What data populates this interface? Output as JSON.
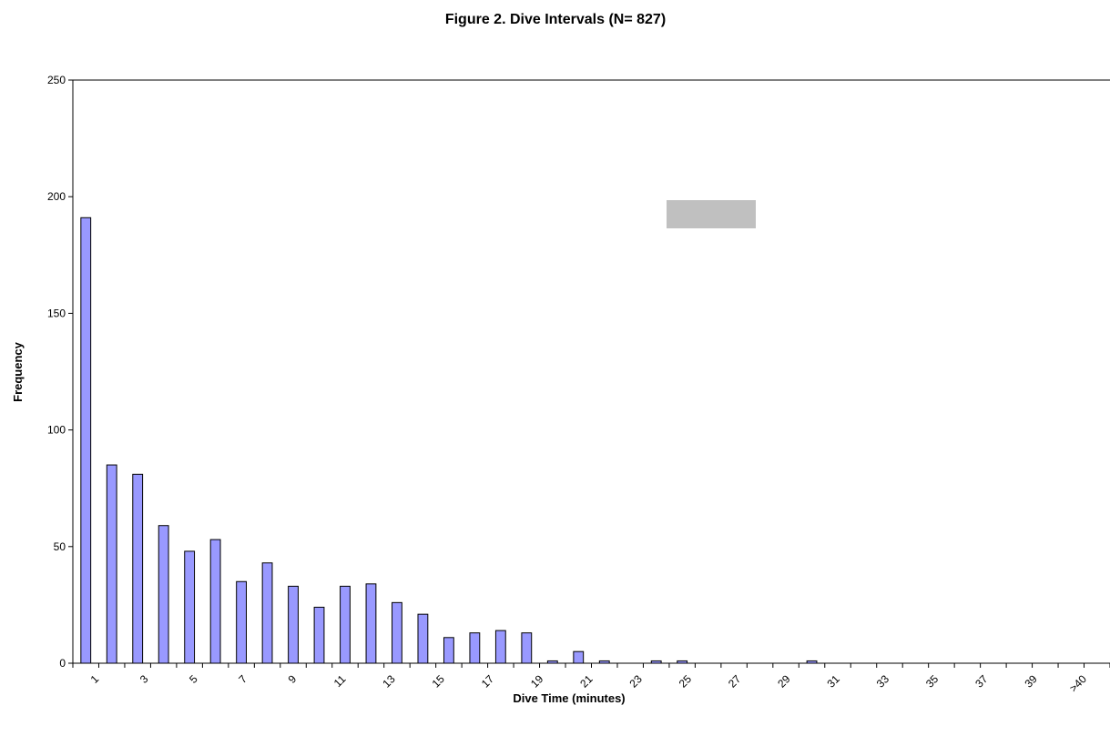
{
  "chart_data": {
    "type": "bar",
    "title": "Figure 2. Dive Intervals (N= 827)",
    "xlabel": "Dive Time (minutes)",
    "ylabel": "Frequency",
    "ylim": [
      0,
      250
    ],
    "yticks": [
      0,
      50,
      100,
      150,
      200,
      250
    ],
    "grid": false,
    "categories": [
      "1",
      "2",
      "3",
      "4",
      "5",
      "6",
      "7",
      "8",
      "9",
      "10",
      "11",
      "12",
      "13",
      "14",
      "15",
      "16",
      "17",
      "18",
      "19",
      "20",
      "21",
      "22",
      "23",
      "24",
      "25",
      "26",
      "27",
      "28",
      "29",
      "30",
      "31",
      "32",
      "33",
      "34",
      "35",
      "36",
      "37",
      "38",
      "39",
      "40"
    ],
    "xtick_labels": [
      "1",
      "3",
      "5",
      "7",
      "9",
      "11",
      "13",
      "15",
      "17",
      "19",
      "21",
      "23",
      "25",
      "27",
      "29",
      "31",
      "33",
      "35",
      "37",
      "39",
      ">40"
    ],
    "values": [
      191,
      85,
      81,
      59,
      48,
      53,
      35,
      43,
      33,
      24,
      33,
      34,
      26,
      21,
      11,
      13,
      14,
      13,
      1,
      5,
      1,
      0,
      1,
      1,
      0,
      0,
      0,
      0,
      1,
      0,
      0,
      0,
      0,
      0,
      0,
      0,
      0,
      0,
      0,
      0
    ],
    "colors": {
      "bar_fill": "#9999ff",
      "bar_stroke": "#000000",
      "legend_placeholder": "#c0c0c0"
    }
  }
}
